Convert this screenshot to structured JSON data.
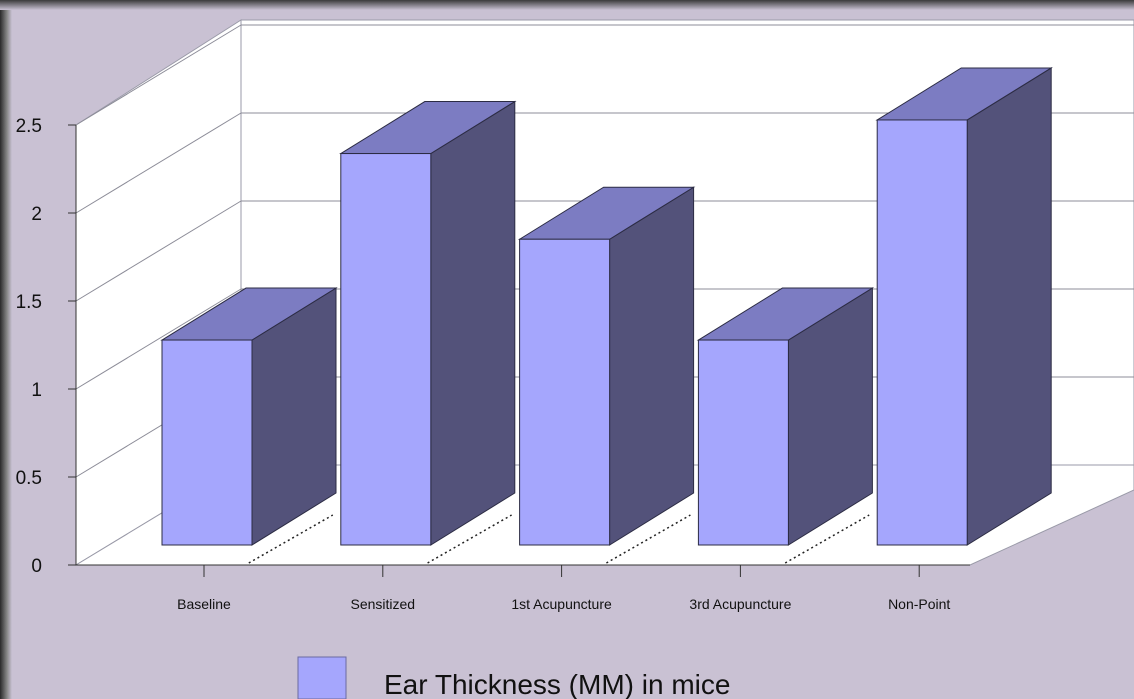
{
  "chart_data": {
    "type": "bar",
    "style": "3d",
    "title": "",
    "xlabel": "",
    "ylabel": "",
    "categories": [
      "Baseline",
      "Sensitized",
      "1st Acupuncture",
      "3rd Acupuncture",
      "Non-Point"
    ],
    "series": [
      {
        "name": "Ear Thickness (MM) in mice",
        "values": [
          1.22,
          2.33,
          1.82,
          1.22,
          2.53
        ]
      }
    ],
    "ylim": [
      0,
      2.5
    ],
    "yticks": [
      "0",
      "0.5",
      "1",
      "1.5",
      "2",
      "2.5"
    ],
    "grid": true,
    "legend_position": "bottom",
    "colors": {
      "bar_front": "#a5a6fd",
      "bar_top": "#7c7cc2",
      "bar_side": "#53527a",
      "background": "#c9c1d3",
      "wall": "#ffffff"
    }
  }
}
